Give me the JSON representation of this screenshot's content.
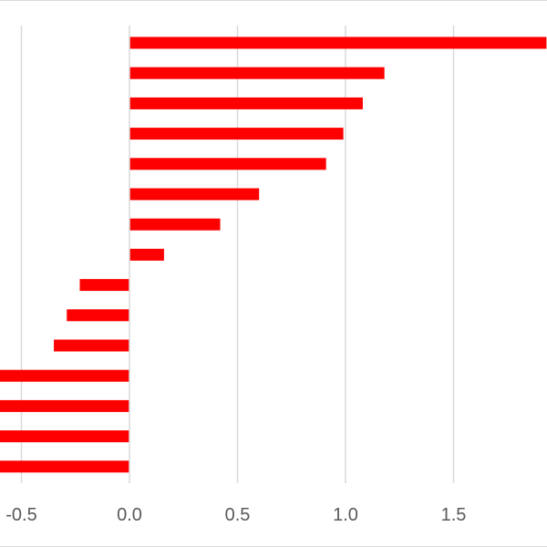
{
  "chart_data": {
    "type": "bar",
    "orientation": "horizontal",
    "title": "",
    "xlabel": "",
    "ylabel": "",
    "xlim": [
      -0.6,
      1.92
    ],
    "x_ticks": [
      "-0.5",
      "0.0",
      "0.5",
      "1.0",
      "1.5"
    ],
    "x_tick_values": [
      -0.5,
      0.0,
      0.5,
      1.0,
      1.5
    ],
    "grid": "vertical",
    "legend": "none",
    "bar_color": "#ff0000",
    "grid_color": "#d9d9d9",
    "values": [
      1.93,
      1.18,
      1.08,
      0.99,
      0.91,
      0.6,
      0.42,
      0.16,
      -0.23,
      -0.29,
      -0.35,
      -0.68,
      -0.68,
      -0.68,
      -0.68
    ]
  }
}
